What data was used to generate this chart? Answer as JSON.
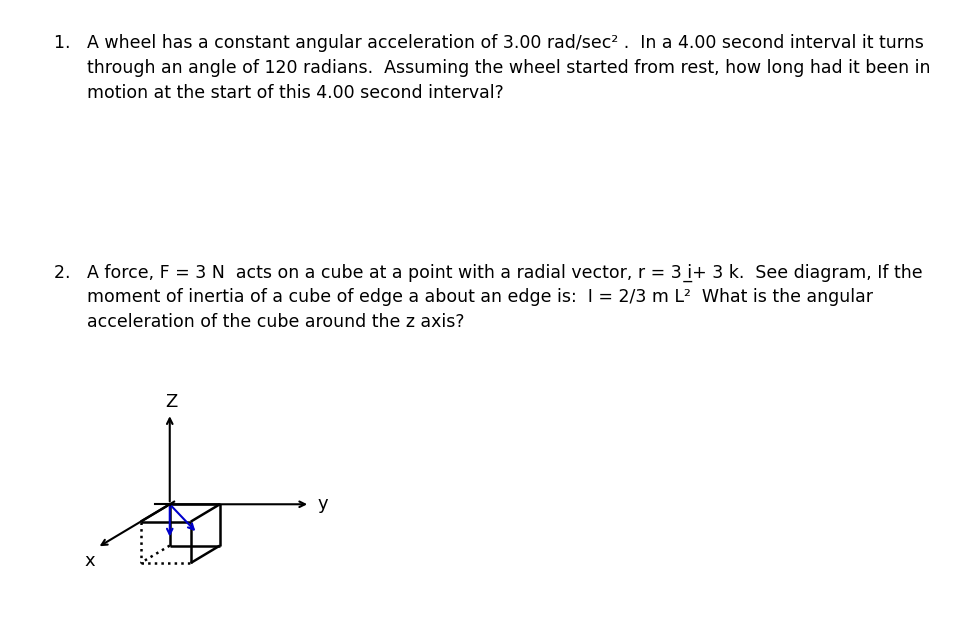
{
  "background_color": "#ffffff",
  "text_color": "#000000",
  "q1_line1": "1.   A wheel has a constant angular acceleration of 3.00 rad/sec² .  In a 4.00 second interval it turns",
  "q1_line2": "      through an angle of 120 radians.  Assuming the wheel started from rest, how long had it been in",
  "q1_line3": "      motion at the start of this 4.00 second interval?",
  "q2_line1": "2.   A force, F = 3 N  acts on a cube at a point with a radial vector, r = 3 i̲+ 3 k.  See diagram, If the",
  "q2_line2": "      moment of inertia of a cube of edge a about an edge is:  I = 2/3 m L²  What is the angular",
  "q2_line3": "      acceleration of the cube around the z axis?",
  "font_size": 12.5,
  "cube_color": "#000000",
  "axis_color": "#000000",
  "arrow_color": "#0000cc",
  "cube_lw": 1.8,
  "axis_lw": 1.5,
  "arrow_lw": 1.5,
  "sc": 1.0,
  "cube_size": 1.0,
  "vy": [
    1.0,
    0.0
  ],
  "vz": [
    0.0,
    1.0
  ],
  "vx": [
    -0.58,
    -0.42
  ]
}
